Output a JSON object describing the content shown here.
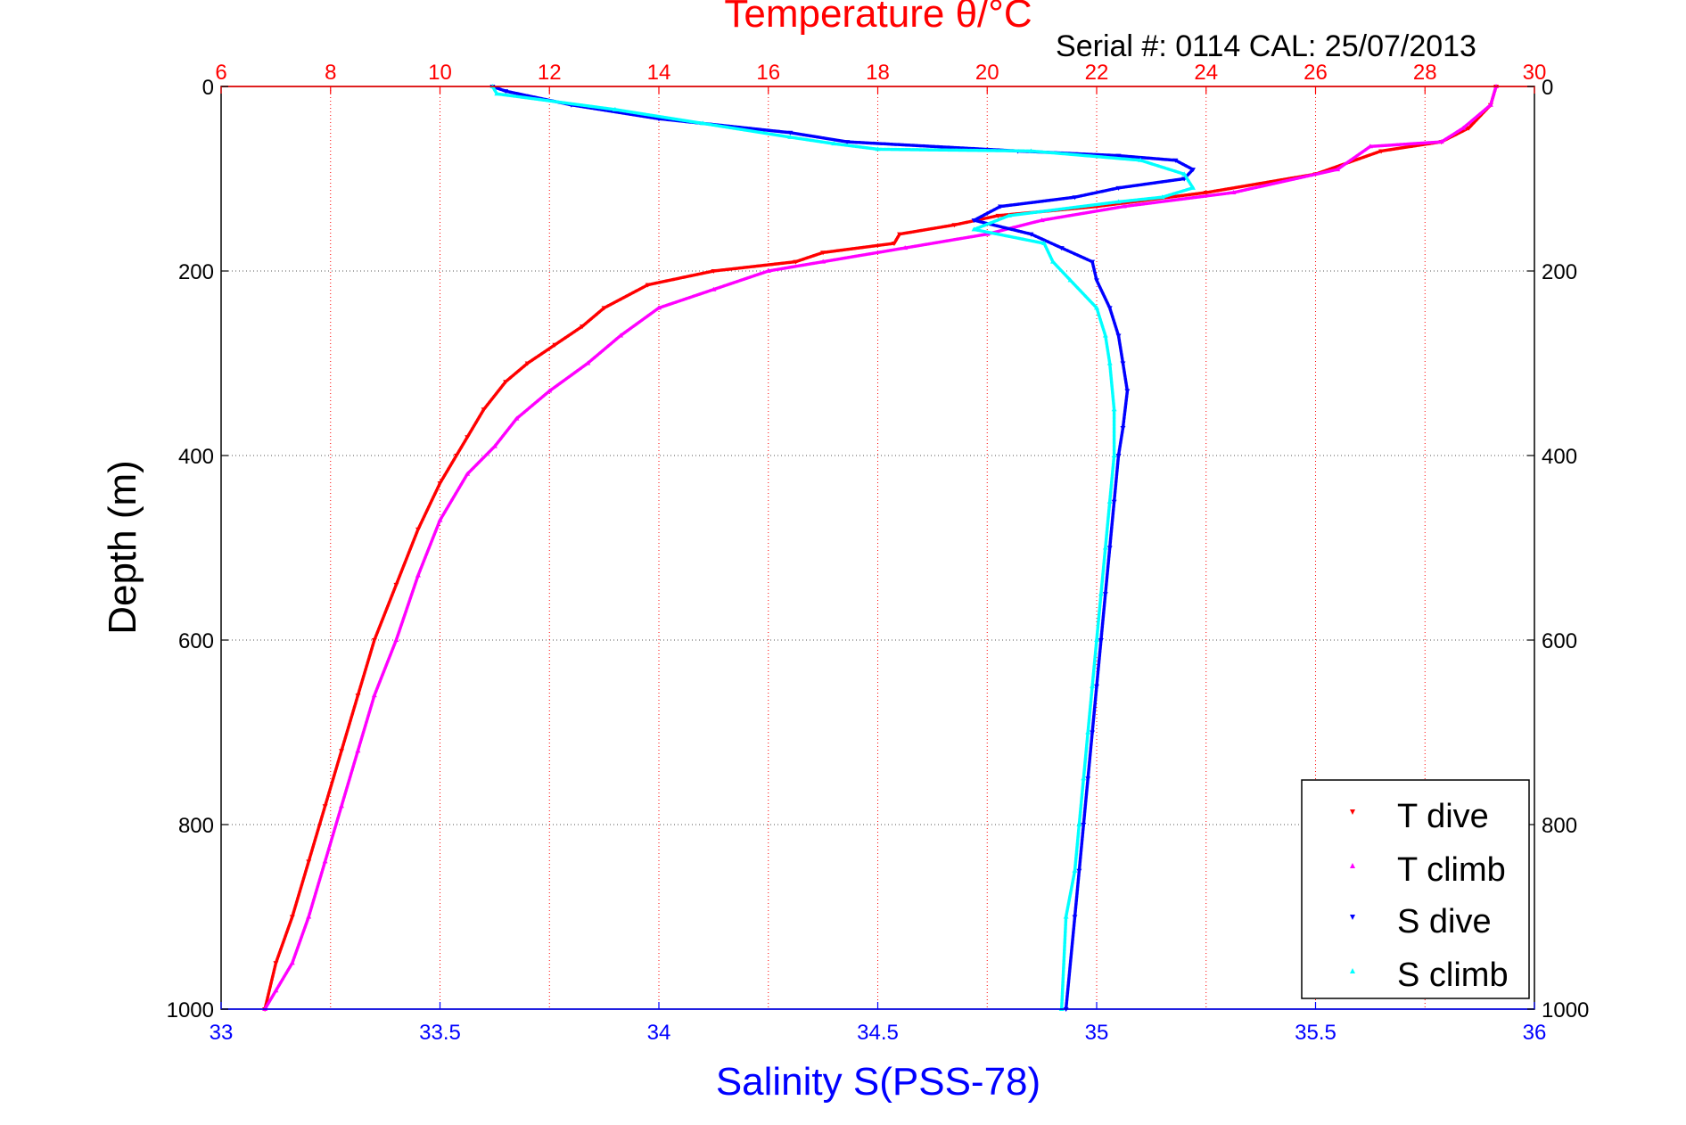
{
  "chart_data": {
    "type": "scatter",
    "title": "Temperature θ/°C",
    "subtitle": "Serial #: 0114  CAL: 25/07/2013",
    "ylabel": "Depth (m)",
    "xlabel": "Salinity S(PSS-78)",
    "grid": true,
    "legend_position": "bottom-right",
    "y_axis": {
      "ylim": [
        0,
        1000
      ],
      "reversed": true,
      "ticks": [
        "0",
        "200",
        "400",
        "600",
        "800",
        "1000"
      ],
      "tick_values": [
        0,
        200,
        400,
        600,
        800,
        1000
      ]
    },
    "x_axis_top": {
      "label": "Temperature θ/°C",
      "xlim": [
        6,
        30
      ],
      "ticks": [
        "6",
        "8",
        "10",
        "12",
        "14",
        "16",
        "18",
        "20",
        "22",
        "24",
        "26",
        "28",
        "30"
      ],
      "tick_values": [
        6,
        8,
        10,
        12,
        14,
        16,
        18,
        20,
        22,
        24,
        26,
        28,
        30
      ],
      "color": "#ff0000"
    },
    "x_axis_bottom": {
      "label": "Salinity S(PSS-78)",
      "xlim": [
        33,
        36
      ],
      "ticks": [
        "33",
        "33.5",
        "34",
        "34.5",
        "35",
        "35.5",
        "36"
      ],
      "tick_values": [
        33,
        33.5,
        34,
        34.5,
        35,
        35.5,
        36
      ],
      "color": "#0000ff"
    },
    "series": [
      {
        "name": "T dive",
        "axis": "temperature",
        "color": "#ff0000",
        "marker": "triangle-down",
        "x": [
          29.3,
          29.2,
          28.8,
          28.3,
          27.2,
          26.0,
          24.0,
          22.0,
          20.2,
          19.4,
          18.4,
          18.3,
          17.0,
          16.5,
          15.0,
          13.8,
          13.0,
          12.6,
          12.1,
          11.6,
          11.2,
          10.8,
          10.5,
          10.3,
          10.0,
          9.6,
          9.2,
          8.8,
          8.5,
          8.2,
          7.9,
          7.6,
          7.3,
          7.0,
          6.8
        ],
        "y": [
          0,
          20,
          45,
          60,
          70,
          95,
          115,
          130,
          140,
          150,
          160,
          170,
          180,
          190,
          200,
          215,
          240,
          260,
          280,
          300,
          320,
          350,
          380,
          400,
          430,
          480,
          540,
          600,
          660,
          720,
          780,
          840,
          900,
          950,
          1000
        ]
      },
      {
        "name": "T climb",
        "axis": "temperature",
        "color": "#ff00ff",
        "marker": "triangle-up",
        "x": [
          29.3,
          29.2,
          28.7,
          28.3,
          27.0,
          26.4,
          24.5,
          22.5,
          21.0,
          20.0,
          18.5,
          17.0,
          16.0,
          15.0,
          14.0,
          13.3,
          12.7,
          12.0,
          11.4,
          11.0,
          10.5,
          10.0,
          9.6,
          9.2,
          8.8,
          8.5,
          8.2,
          7.9,
          7.6,
          7.3,
          7.0,
          6.8
        ],
        "y": [
          0,
          20,
          45,
          60,
          65,
          90,
          115,
          130,
          145,
          160,
          175,
          190,
          200,
          220,
          240,
          270,
          300,
          330,
          360,
          390,
          420,
          470,
          530,
          600,
          660,
          720,
          780,
          840,
          900,
          950,
          980,
          1000
        ]
      },
      {
        "name": "S dive",
        "axis": "salinity",
        "color": "#0000ff",
        "marker": "triangle-down",
        "x": [
          33.62,
          33.65,
          33.8,
          34.0,
          34.3,
          34.43,
          34.82,
          35.05,
          35.18,
          35.22,
          35.2,
          35.05,
          34.95,
          34.78,
          34.72,
          34.85,
          34.92,
          34.99,
          35.0,
          35.03,
          35.05,
          35.06,
          35.07,
          35.06,
          35.05,
          35.04,
          35.03,
          35.02,
          35.01,
          35.0,
          34.99,
          34.98,
          34.97,
          34.96,
          34.95,
          34.93
        ],
        "y": [
          0,
          5,
          20,
          35,
          50,
          60,
          70,
          75,
          80,
          90,
          100,
          110,
          120,
          130,
          145,
          160,
          175,
          190,
          210,
          240,
          270,
          300,
          330,
          370,
          400,
          450,
          500,
          550,
          600,
          650,
          700,
          750,
          800,
          850,
          900,
          1000
        ]
      },
      {
        "name": "S climb",
        "axis": "salinity",
        "color": "#00ffff",
        "marker": "triangle-up",
        "x": [
          33.62,
          33.63,
          33.9,
          34.1,
          34.3,
          34.4,
          34.5,
          34.85,
          35.1,
          35.2,
          35.22,
          35.15,
          35.05,
          34.8,
          34.72,
          34.88,
          34.9,
          34.94,
          35.0,
          35.02,
          35.03,
          35.04,
          35.04,
          35.03,
          35.02,
          35.01,
          35.0,
          34.99,
          34.98,
          34.97,
          34.96,
          34.95,
          34.93,
          34.92
        ],
        "y": [
          0,
          8,
          25,
          40,
          55,
          62,
          68,
          70,
          80,
          95,
          110,
          120,
          125,
          140,
          155,
          170,
          190,
          210,
          240,
          270,
          300,
          350,
          400,
          450,
          500,
          550,
          600,
          650,
          700,
          750,
          800,
          850,
          900,
          1000
        ]
      }
    ]
  }
}
